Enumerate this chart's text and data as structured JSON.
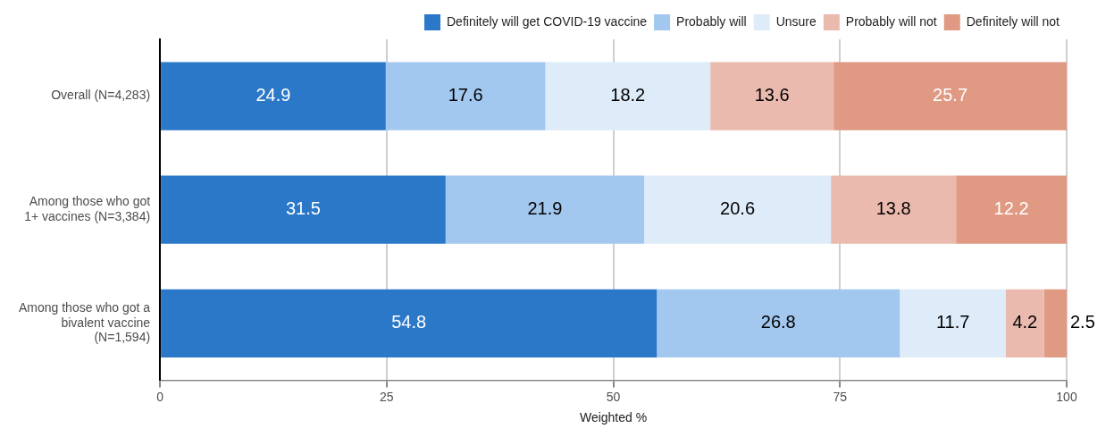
{
  "chart_data": {
    "type": "bar",
    "orientation": "horizontal",
    "stacked": true,
    "xlabel": "Weighted %",
    "categories": [
      "Overall (N=4,283)",
      "Among those who got 1+ vaccines (N=3,384)",
      "Among those who got a bivalent vaccine (N=1,594)"
    ],
    "series": [
      {
        "name": "Definitely will get COVID-19 vaccine",
        "color": "#2b78c9",
        "values": [
          24.9,
          31.5,
          54.8
        ]
      },
      {
        "name": "Probably will",
        "color": "#a3c8ef",
        "values": [
          17.6,
          21.9,
          26.8
        ]
      },
      {
        "name": "Unsure",
        "color": "#deebf8",
        "values": [
          18.2,
          20.6,
          11.7
        ]
      },
      {
        "name": "Probably will not",
        "color": "#ebbaae",
        "values": [
          13.6,
          13.8,
          4.2
        ]
      },
      {
        "name": "Definitely will not",
        "color": "#e09983",
        "values": [
          25.7,
          12.2,
          2.5
        ]
      }
    ],
    "xlim": [
      0,
      100
    ],
    "xticks": [
      0,
      25,
      50,
      75,
      100
    ],
    "grid": "x",
    "legend": "top",
    "data_labels": true
  }
}
